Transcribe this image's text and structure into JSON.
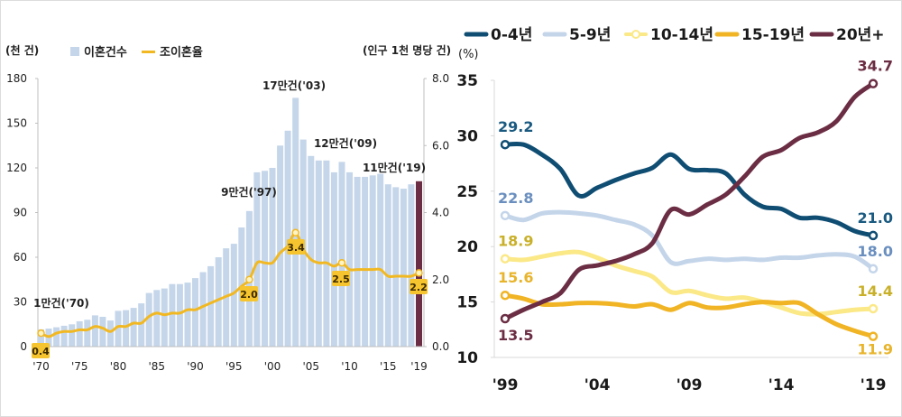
{
  "chart_data": [
    {
      "type": "bar",
      "title": "",
      "ylabel": "(천 건)",
      "y2label": "(인구 1천 명당 건)",
      "ylim": [
        0,
        180
      ],
      "y2lim": [
        0,
        8.0
      ],
      "yticks": [
        "0",
        "30",
        "60",
        "90",
        "120",
        "150",
        "180"
      ],
      "y2ticks": [
        "0.0",
        "2.0",
        "4.0",
        "6.0",
        "8.0"
      ],
      "xtick_labels": [
        {
          "year": 1970,
          "label": "'70"
        },
        {
          "year": 1975,
          "label": "'75"
        },
        {
          "year": 1980,
          "label": "'80"
        },
        {
          "year": 1985,
          "label": "'85"
        },
        {
          "year": 1990,
          "label": "'90"
        },
        {
          "year": 1995,
          "label": "'95"
        },
        {
          "year": 2000,
          "label": "'00"
        },
        {
          "year": 2005,
          "label": "'05"
        },
        {
          "year": 2010,
          "label": "'10"
        },
        {
          "year": 2015,
          "label": "'15"
        },
        {
          "year": 2019,
          "label": "'19"
        }
      ],
      "legend": [
        {
          "name": "이혼건수",
          "color": "#c5d6ea",
          "kind": "bar"
        },
        {
          "name": "조이혼율",
          "color": "#f2b821",
          "kind": "line"
        }
      ],
      "legend_position": "top-left",
      "highlight_color": "#6b2d43",
      "x": [
        1970,
        1971,
        1972,
        1973,
        1974,
        1975,
        1976,
        1977,
        1978,
        1979,
        1980,
        1981,
        1982,
        1983,
        1984,
        1985,
        1986,
        1987,
        1988,
        1989,
        1990,
        1991,
        1992,
        1993,
        1994,
        1995,
        1996,
        1997,
        1998,
        1999,
        2000,
        2001,
        2002,
        2003,
        2004,
        2005,
        2006,
        2007,
        2008,
        2009,
        2010,
        2011,
        2012,
        2013,
        2014,
        2015,
        2016,
        2017,
        2018,
        2019
      ],
      "series": [
        {
          "name": "이혼건수",
          "axis": "left",
          "unit": "천 건",
          "values": [
            11.6,
            12.1,
            13.0,
            14.0,
            15.0,
            17.0,
            18.0,
            21.0,
            20.0,
            17.5,
            24.0,
            24.5,
            26.0,
            29.0,
            36.0,
            38.0,
            39.0,
            42.0,
            42.0,
            43.0,
            46.0,
            50.0,
            54.0,
            60.0,
            66.0,
            69.0,
            80.0,
            91.0,
            117.0,
            118.0,
            120.0,
            135.0,
            145.0,
            167.0,
            139.0,
            128.0,
            125.0,
            125.0,
            117.0,
            124.0,
            117.0,
            114.0,
            114.0,
            115.0,
            116.0,
            109.0,
            107.0,
            106.0,
            109.0,
            111.0
          ]
        },
        {
          "name": "조이혼율",
          "axis": "right",
          "unit": "인구 1천 명당 건",
          "values": [
            0.4,
            0.3,
            0.4,
            0.45,
            0.45,
            0.5,
            0.5,
            0.6,
            0.55,
            0.45,
            0.6,
            0.6,
            0.7,
            0.7,
            0.9,
            1.0,
            0.95,
            1.0,
            1.0,
            1.1,
            1.1,
            1.2,
            1.3,
            1.4,
            1.5,
            1.6,
            1.8,
            2.0,
            2.5,
            2.5,
            2.5,
            2.8,
            3.0,
            3.4,
            2.9,
            2.6,
            2.5,
            2.5,
            2.4,
            2.5,
            2.3,
            2.3,
            2.3,
            2.3,
            2.3,
            2.1,
            2.1,
            2.1,
            2.1,
            2.2
          ]
        }
      ],
      "annotations": [
        {
          "year": 1970,
          "text": "1만건('70)"
        },
        {
          "year": 1997,
          "text": "9만건('97)"
        },
        {
          "year": 2003,
          "text": "17만건('03)"
        },
        {
          "year": 2009,
          "text": "12만건('09)"
        },
        {
          "year": 2019,
          "text": "11만건('19)"
        }
      ],
      "data_labels": [
        {
          "year": 1970,
          "text": "0.4"
        },
        {
          "year": 1997,
          "text": "2.0"
        },
        {
          "year": 2003,
          "text": "3.4"
        },
        {
          "year": 2009,
          "text": "2.5"
        },
        {
          "year": 2019,
          "text": "2.2"
        }
      ]
    },
    {
      "type": "line",
      "title": "",
      "ylabel": "(%)",
      "ylim": [
        10,
        35
      ],
      "yticks": [
        "10",
        "15",
        "20",
        "25",
        "30",
        "35"
      ],
      "xtick_labels": [
        {
          "year": 1999,
          "label": "'99"
        },
        {
          "year": 2004,
          "label": "'04"
        },
        {
          "year": 2009,
          "label": "'09"
        },
        {
          "year": 2014,
          "label": "'14"
        },
        {
          "year": 2019,
          "label": "'19"
        }
      ],
      "legend_position": "top",
      "x": [
        1999,
        2000,
        2001,
        2002,
        2003,
        2004,
        2005,
        2006,
        2007,
        2008,
        2009,
        2010,
        2011,
        2012,
        2013,
        2014,
        2015,
        2016,
        2017,
        2018,
        2019
      ],
      "series": [
        {
          "name": "0-4년",
          "color": "#0f4d73",
          "marker": "solid",
          "values": [
            29.2,
            29.2,
            28.3,
            27.0,
            24.6,
            25.3,
            26.0,
            26.6,
            27.1,
            28.3,
            27.0,
            26.9,
            26.6,
            24.7,
            23.6,
            23.4,
            22.6,
            22.6,
            22.2,
            21.4,
            21.0
          ],
          "end_labels": [
            "29.2",
            "21.0"
          ],
          "label_color": "#1a5a80"
        },
        {
          "name": "5-9년",
          "color": "#c4d5ea",
          "marker": "solid",
          "values": [
            22.8,
            22.4,
            23.0,
            23.1,
            23.0,
            22.8,
            22.4,
            22.0,
            21.0,
            18.6,
            18.7,
            18.9,
            18.8,
            18.9,
            18.8,
            19.0,
            19.0,
            19.2,
            19.3,
            19.1,
            18.0
          ],
          "end_labels": [
            "22.8",
            "18.0"
          ],
          "label_color": "#6a8fbf"
        },
        {
          "name": "10-14년",
          "color": "#fbe886",
          "marker": "hollow",
          "values": [
            18.9,
            18.8,
            19.1,
            19.4,
            19.5,
            19.0,
            18.3,
            17.8,
            17.3,
            15.9,
            16.0,
            15.6,
            15.3,
            15.4,
            15.0,
            14.5,
            14.0,
            13.9,
            14.1,
            14.3,
            14.4
          ],
          "end_labels": [
            "18.9",
            "14.4"
          ],
          "label_color": "#c9b02a"
        },
        {
          "name": "15-19년",
          "color": "#f0b424",
          "marker": "solid",
          "values": [
            15.6,
            15.3,
            14.8,
            14.8,
            14.9,
            14.9,
            14.8,
            14.6,
            14.8,
            14.3,
            14.9,
            14.5,
            14.5,
            14.8,
            15.0,
            14.9,
            14.9,
            13.9,
            13.0,
            12.4,
            11.9
          ],
          "end_labels": [
            "15.6",
            "11.9"
          ],
          "label_color": "#e8b42c"
        },
        {
          "name": "20년+",
          "color": "#6b2d43",
          "marker": "solid",
          "values": [
            13.5,
            14.3,
            15.0,
            15.8,
            17.9,
            18.3,
            18.7,
            19.3,
            20.3,
            23.3,
            22.9,
            23.8,
            24.7,
            26.3,
            28.1,
            28.7,
            29.8,
            30.3,
            31.3,
            33.5,
            34.7
          ],
          "end_labels": [
            "13.5",
            "34.7"
          ],
          "label_color": "#6b2d43"
        }
      ]
    }
  ]
}
